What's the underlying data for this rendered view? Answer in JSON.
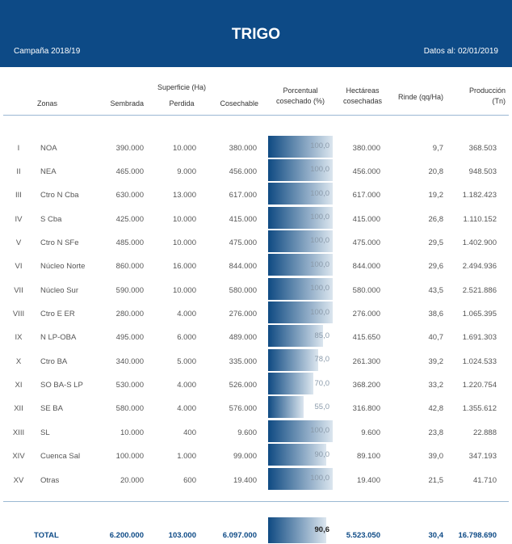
{
  "header": {
    "title": "TRIGO",
    "campaign": "Campaña 2018/19",
    "date": "Datos al: 02/01/2019"
  },
  "table": {
    "columns": {
      "zone": "Zonas",
      "surface": "Superficie (Ha)",
      "sown": "Sembrada",
      "lost": "Perdida",
      "harvestable": "Cosechable",
      "pct": "Porcentual cosechado (%)",
      "harvested": "Hectáreas cosechadas",
      "yield": "Rinde (qq/Ha)",
      "production": "Producción (Tn)"
    },
    "rows": [
      [
        "I",
        "NOA",
        "390.000",
        "10.000",
        "380.000",
        {
          "value": 100,
          "label": "100,0"
        },
        "380.000",
        "9,7",
        "368.503"
      ],
      [
        "II",
        "NEA",
        "465.000",
        "9.000",
        "456.000",
        {
          "value": 100,
          "label": "100,0"
        },
        "456.000",
        "20,8",
        "948.503"
      ],
      [
        "III",
        "Ctro N Cba",
        "630.000",
        "13.000",
        "617.000",
        {
          "value": 100,
          "label": "100,0"
        },
        "617.000",
        "19,2",
        "1.182.423"
      ],
      [
        "IV",
        "S Cba",
        "425.000",
        "10.000",
        "415.000",
        {
          "value": 100,
          "label": "100,0"
        },
        "415.000",
        "26,8",
        "1.110.152"
      ],
      [
        "V",
        "Ctro N SFe",
        "485.000",
        "10.000",
        "475.000",
        {
          "value": 100,
          "label": "100,0"
        },
        "475.000",
        "29,5",
        "1.402.900"
      ],
      [
        "VI",
        "Núcleo Norte",
        "860.000",
        "16.000",
        "844.000",
        {
          "value": 100,
          "label": "100,0"
        },
        "844.000",
        "29,6",
        "2.494.936"
      ],
      [
        "VII",
        "Núcleo Sur",
        "590.000",
        "10.000",
        "580.000",
        {
          "value": 100,
          "label": "100,0"
        },
        "580.000",
        "43,5",
        "2.521.886"
      ],
      [
        "VIII",
        "Ctro E ER",
        "280.000",
        "4.000",
        "276.000",
        {
          "value": 100,
          "label": "100,0"
        },
        "276.000",
        "38,6",
        "1.065.395"
      ],
      [
        "IX",
        "N LP-OBA",
        "495.000",
        "6.000",
        "489.000",
        {
          "value": 85,
          "label": "85,0"
        },
        "415.650",
        "40,7",
        "1.691.303"
      ],
      [
        "X",
        "Ctro BA",
        "340.000",
        "5.000",
        "335.000",
        {
          "value": 78,
          "label": "78,0"
        },
        "261.300",
        "39,2",
        "1.024.533"
      ],
      [
        "XI",
        "SO BA-S LP",
        "530.000",
        "4.000",
        "526.000",
        {
          "value": 70,
          "label": "70,0"
        },
        "368.200",
        "33,2",
        "1.220.754"
      ],
      [
        "XII",
        "SE BA",
        "580.000",
        "4.000",
        "576.000",
        {
          "value": 55,
          "label": "55,0"
        },
        "316.800",
        "42,8",
        "1.355.612"
      ],
      [
        "XIII",
        "SL",
        "10.000",
        "400",
        "9.600",
        {
          "value": 100,
          "label": "100,0"
        },
        "9.600",
        "23,8",
        "22.888"
      ],
      [
        "XIV",
        "Cuenca Sal",
        "100.000",
        "1.000",
        "99.000",
        {
          "value": 90,
          "label": "90,0"
        },
        "89.100",
        "39,0",
        "347.193"
      ],
      [
        "XV",
        "Otras",
        "20.000",
        "600",
        "19.400",
        {
          "value": 100,
          "label": "100,0"
        },
        "19.400",
        "21,5",
        "41.710"
      ]
    ],
    "total": [
      "TOTAL",
      "6.200.000",
      "103.000",
      "6.097.000",
      {
        "value": 90.6,
        "label": "90,6"
      },
      "5.523.050",
      "30,4",
      "16.798.690"
    ]
  }
}
